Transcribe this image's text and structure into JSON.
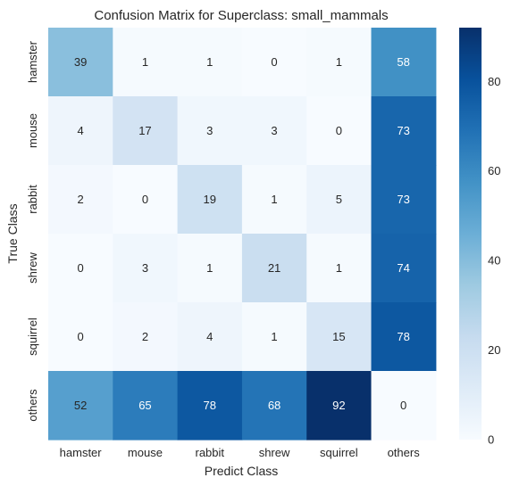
{
  "chart_data": {
    "type": "heatmap",
    "title": "Confusion Matrix for Superclass: small_mammals",
    "xlabel": "Predict Class",
    "ylabel": "True Class",
    "x_categories": [
      "hamster",
      "mouse",
      "rabbit",
      "shrew",
      "squirrel",
      "others"
    ],
    "y_categories": [
      "hamster",
      "mouse",
      "rabbit",
      "shrew",
      "squirrel",
      "others"
    ],
    "values": [
      [
        39,
        1,
        1,
        0,
        1,
        58
      ],
      [
        4,
        17,
        3,
        3,
        0,
        73
      ],
      [
        2,
        0,
        19,
        1,
        5,
        73
      ],
      [
        0,
        3,
        1,
        21,
        1,
        74
      ],
      [
        0,
        2,
        4,
        1,
        15,
        78
      ],
      [
        52,
        65,
        78,
        68,
        92,
        0
      ]
    ],
    "colorscale": "Blues",
    "vmin": 0,
    "vmax": 92,
    "colorbar_ticks": [
      0,
      20,
      40,
      60,
      80
    ]
  }
}
